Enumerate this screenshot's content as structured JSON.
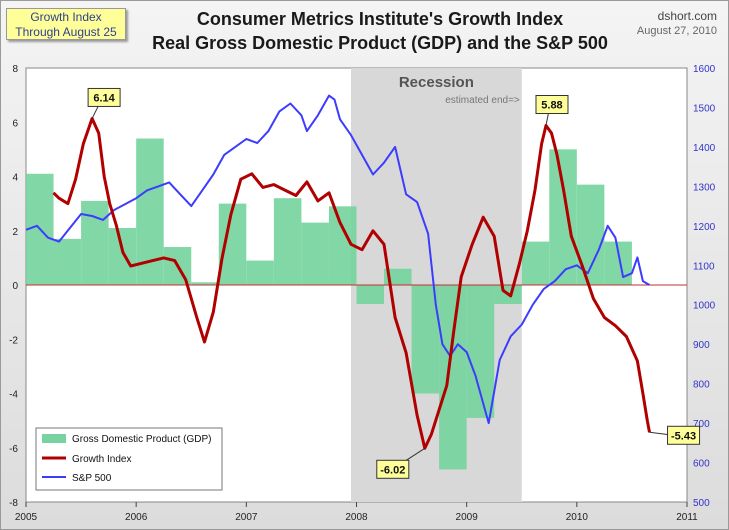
{
  "header": {
    "title_line1": "Consumer Metrics Institute's Growth Index",
    "title_line2": "Real Gross Domestic Product (GDP) and the S&P 500",
    "note_line1": "Growth Index",
    "note_line2": "Through  August 25",
    "source": "dshort.com",
    "date": "August 27, 2010"
  },
  "chart_data": {
    "type": "line",
    "x_range": [
      2005,
      2011
    ],
    "x_ticks": [
      "2005",
      "2006",
      "2007",
      "2008",
      "2009",
      "2010",
      "2011"
    ],
    "y_left_range": [
      -8,
      8
    ],
    "y_left_ticks": [
      "8",
      "6",
      "4",
      "2",
      "0",
      "-2",
      "-4",
      "-6",
      "-8"
    ],
    "y_right_range": [
      500,
      1600
    ],
    "y_right_ticks": [
      "1600",
      "1500",
      "1400",
      "1300",
      "1200",
      "1100",
      "1000",
      "900",
      "800",
      "700",
      "600",
      "500"
    ],
    "recession": {
      "label": "Recession",
      "start": 2007.95,
      "end": 2009.5,
      "end_note": "estimated end=>"
    },
    "legend": {
      "placement": "bottom-left",
      "items": [
        "Gross Domestic Product (GDP)",
        "Growth Index",
        "S&P 500"
      ]
    },
    "colors": {
      "gdp": "#77d4a0",
      "growth": "#b00000",
      "sp500": "#3c3cff",
      "recession": "#d8d8d8",
      "zero_line": "#c03030"
    },
    "gdp": {
      "name": "Gross Domestic Product (GDP)",
      "quarters": [
        {
          "start": 2005.0,
          "end": 2005.25,
          "value": 4.1
        },
        {
          "start": 2005.25,
          "end": 2005.5,
          "value": 1.7
        },
        {
          "start": 2005.5,
          "end": 2005.75,
          "value": 3.1
        },
        {
          "start": 2005.75,
          "end": 2006.0,
          "value": 2.1
        },
        {
          "start": 2006.0,
          "end": 2006.25,
          "value": 5.4
        },
        {
          "start": 2006.25,
          "end": 2006.5,
          "value": 1.4
        },
        {
          "start": 2006.5,
          "end": 2006.75,
          "value": 0.1
        },
        {
          "start": 2006.75,
          "end": 2007.0,
          "value": 3.0
        },
        {
          "start": 2007.0,
          "end": 2007.25,
          "value": 0.9
        },
        {
          "start": 2007.25,
          "end": 2007.5,
          "value": 3.2
        },
        {
          "start": 2007.5,
          "end": 2007.75,
          "value": 2.3
        },
        {
          "start": 2007.75,
          "end": 2008.0,
          "value": 2.9
        },
        {
          "start": 2008.0,
          "end": 2008.25,
          "value": -0.7
        },
        {
          "start": 2008.25,
          "end": 2008.5,
          "value": 0.6
        },
        {
          "start": 2008.5,
          "end": 2008.75,
          "value": -4.0
        },
        {
          "start": 2008.75,
          "end": 2009.0,
          "value": -6.8
        },
        {
          "start": 2009.0,
          "end": 2009.25,
          "value": -4.9
        },
        {
          "start": 2009.25,
          "end": 2009.5,
          "value": -0.7
        },
        {
          "start": 2009.5,
          "end": 2009.75,
          "value": 1.6
        },
        {
          "start": 2009.75,
          "end": 2010.0,
          "value": 5.0
        },
        {
          "start": 2010.0,
          "end": 2010.25,
          "value": 3.7
        },
        {
          "start": 2010.25,
          "end": 2010.5,
          "value": 1.6
        }
      ]
    },
    "growth_index": {
      "name": "Growth Index",
      "x": [
        2005.25,
        2005.3,
        2005.38,
        2005.45,
        2005.52,
        2005.6,
        2005.66,
        2005.71,
        2005.76,
        2005.82,
        2005.88,
        2005.95,
        2006.05,
        2006.15,
        2006.25,
        2006.35,
        2006.45,
        2006.55,
        2006.62,
        2006.7,
        2006.78,
        2006.86,
        2006.95,
        2007.05,
        2007.15,
        2007.25,
        2007.35,
        2007.45,
        2007.55,
        2007.65,
        2007.75,
        2007.85,
        2007.95,
        2008.05,
        2008.15,
        2008.25,
        2008.35,
        2008.45,
        2008.55,
        2008.62,
        2008.68,
        2008.75,
        2008.82,
        2008.88,
        2008.95,
        2009.05,
        2009.15,
        2009.25,
        2009.33,
        2009.4,
        2009.48,
        2009.55,
        2009.62,
        2009.68,
        2009.72,
        2009.77,
        2009.82,
        2009.88,
        2009.95,
        2010.05,
        2010.15,
        2010.25,
        2010.35,
        2010.45,
        2010.55,
        2010.6,
        2010.64,
        2010.66
      ],
      "values": [
        3.4,
        3.2,
        3.0,
        3.9,
        5.2,
        6.14,
        5.6,
        4.0,
        3.0,
        2.2,
        1.2,
        0.7,
        0.8,
        0.9,
        1.0,
        0.9,
        0.2,
        -1.2,
        -2.1,
        -1.0,
        1.0,
        2.6,
        3.9,
        4.1,
        3.6,
        3.7,
        3.5,
        3.3,
        3.8,
        3.1,
        3.4,
        2.3,
        1.5,
        1.3,
        2.0,
        1.5,
        -1.2,
        -2.5,
        -4.8,
        -6.02,
        -5.5,
        -4.6,
        -3.7,
        -1.8,
        0.3,
        1.5,
        2.5,
        1.8,
        -0.2,
        -0.4,
        0.8,
        2.0,
        3.5,
        5.2,
        5.88,
        5.6,
        4.8,
        3.5,
        1.8,
        0.7,
        -0.5,
        -1.2,
        -1.5,
        -1.9,
        -2.8,
        -4.0,
        -5.0,
        -5.43
      ]
    },
    "sp500": {
      "name": "S&P 500",
      "x": [
        2005.0,
        2005.1,
        2005.2,
        2005.3,
        2005.4,
        2005.5,
        2005.6,
        2005.7,
        2005.8,
        2005.9,
        2006.0,
        2006.1,
        2006.2,
        2006.3,
        2006.4,
        2006.5,
        2006.6,
        2006.7,
        2006.8,
        2006.9,
        2007.0,
        2007.1,
        2007.2,
        2007.3,
        2007.4,
        2007.5,
        2007.55,
        2007.65,
        2007.75,
        2007.8,
        2007.85,
        2007.95,
        2008.05,
        2008.15,
        2008.25,
        2008.35,
        2008.45,
        2008.55,
        2008.65,
        2008.72,
        2008.78,
        2008.85,
        2008.92,
        2009.0,
        2009.08,
        2009.15,
        2009.2,
        2009.3,
        2009.4,
        2009.5,
        2009.6,
        2009.7,
        2009.8,
        2009.9,
        2010.0,
        2010.1,
        2010.2,
        2010.28,
        2010.35,
        2010.42,
        2010.5,
        2010.55,
        2010.6,
        2010.66
      ],
      "values": [
        1190,
        1200,
        1170,
        1160,
        1195,
        1230,
        1225,
        1215,
        1240,
        1255,
        1270,
        1290,
        1300,
        1310,
        1280,
        1250,
        1290,
        1330,
        1380,
        1400,
        1420,
        1410,
        1440,
        1490,
        1510,
        1480,
        1440,
        1480,
        1530,
        1520,
        1470,
        1430,
        1380,
        1330,
        1360,
        1400,
        1280,
        1260,
        1180,
        1000,
        900,
        870,
        900,
        880,
        820,
        750,
        700,
        860,
        920,
        950,
        1000,
        1040,
        1060,
        1090,
        1100,
        1080,
        1140,
        1200,
        1170,
        1070,
        1080,
        1120,
        1060,
        1050
      ]
    },
    "annotations": [
      {
        "text": "6.14",
        "x": 2005.6,
        "y": 6.14
      },
      {
        "text": "-6.02",
        "x": 2008.62,
        "y": -6.02
      },
      {
        "text": "5.88",
        "x": 2009.72,
        "y": 5.88
      },
      {
        "text": "-5.43",
        "x": 2010.66,
        "y": -5.43
      }
    ]
  }
}
